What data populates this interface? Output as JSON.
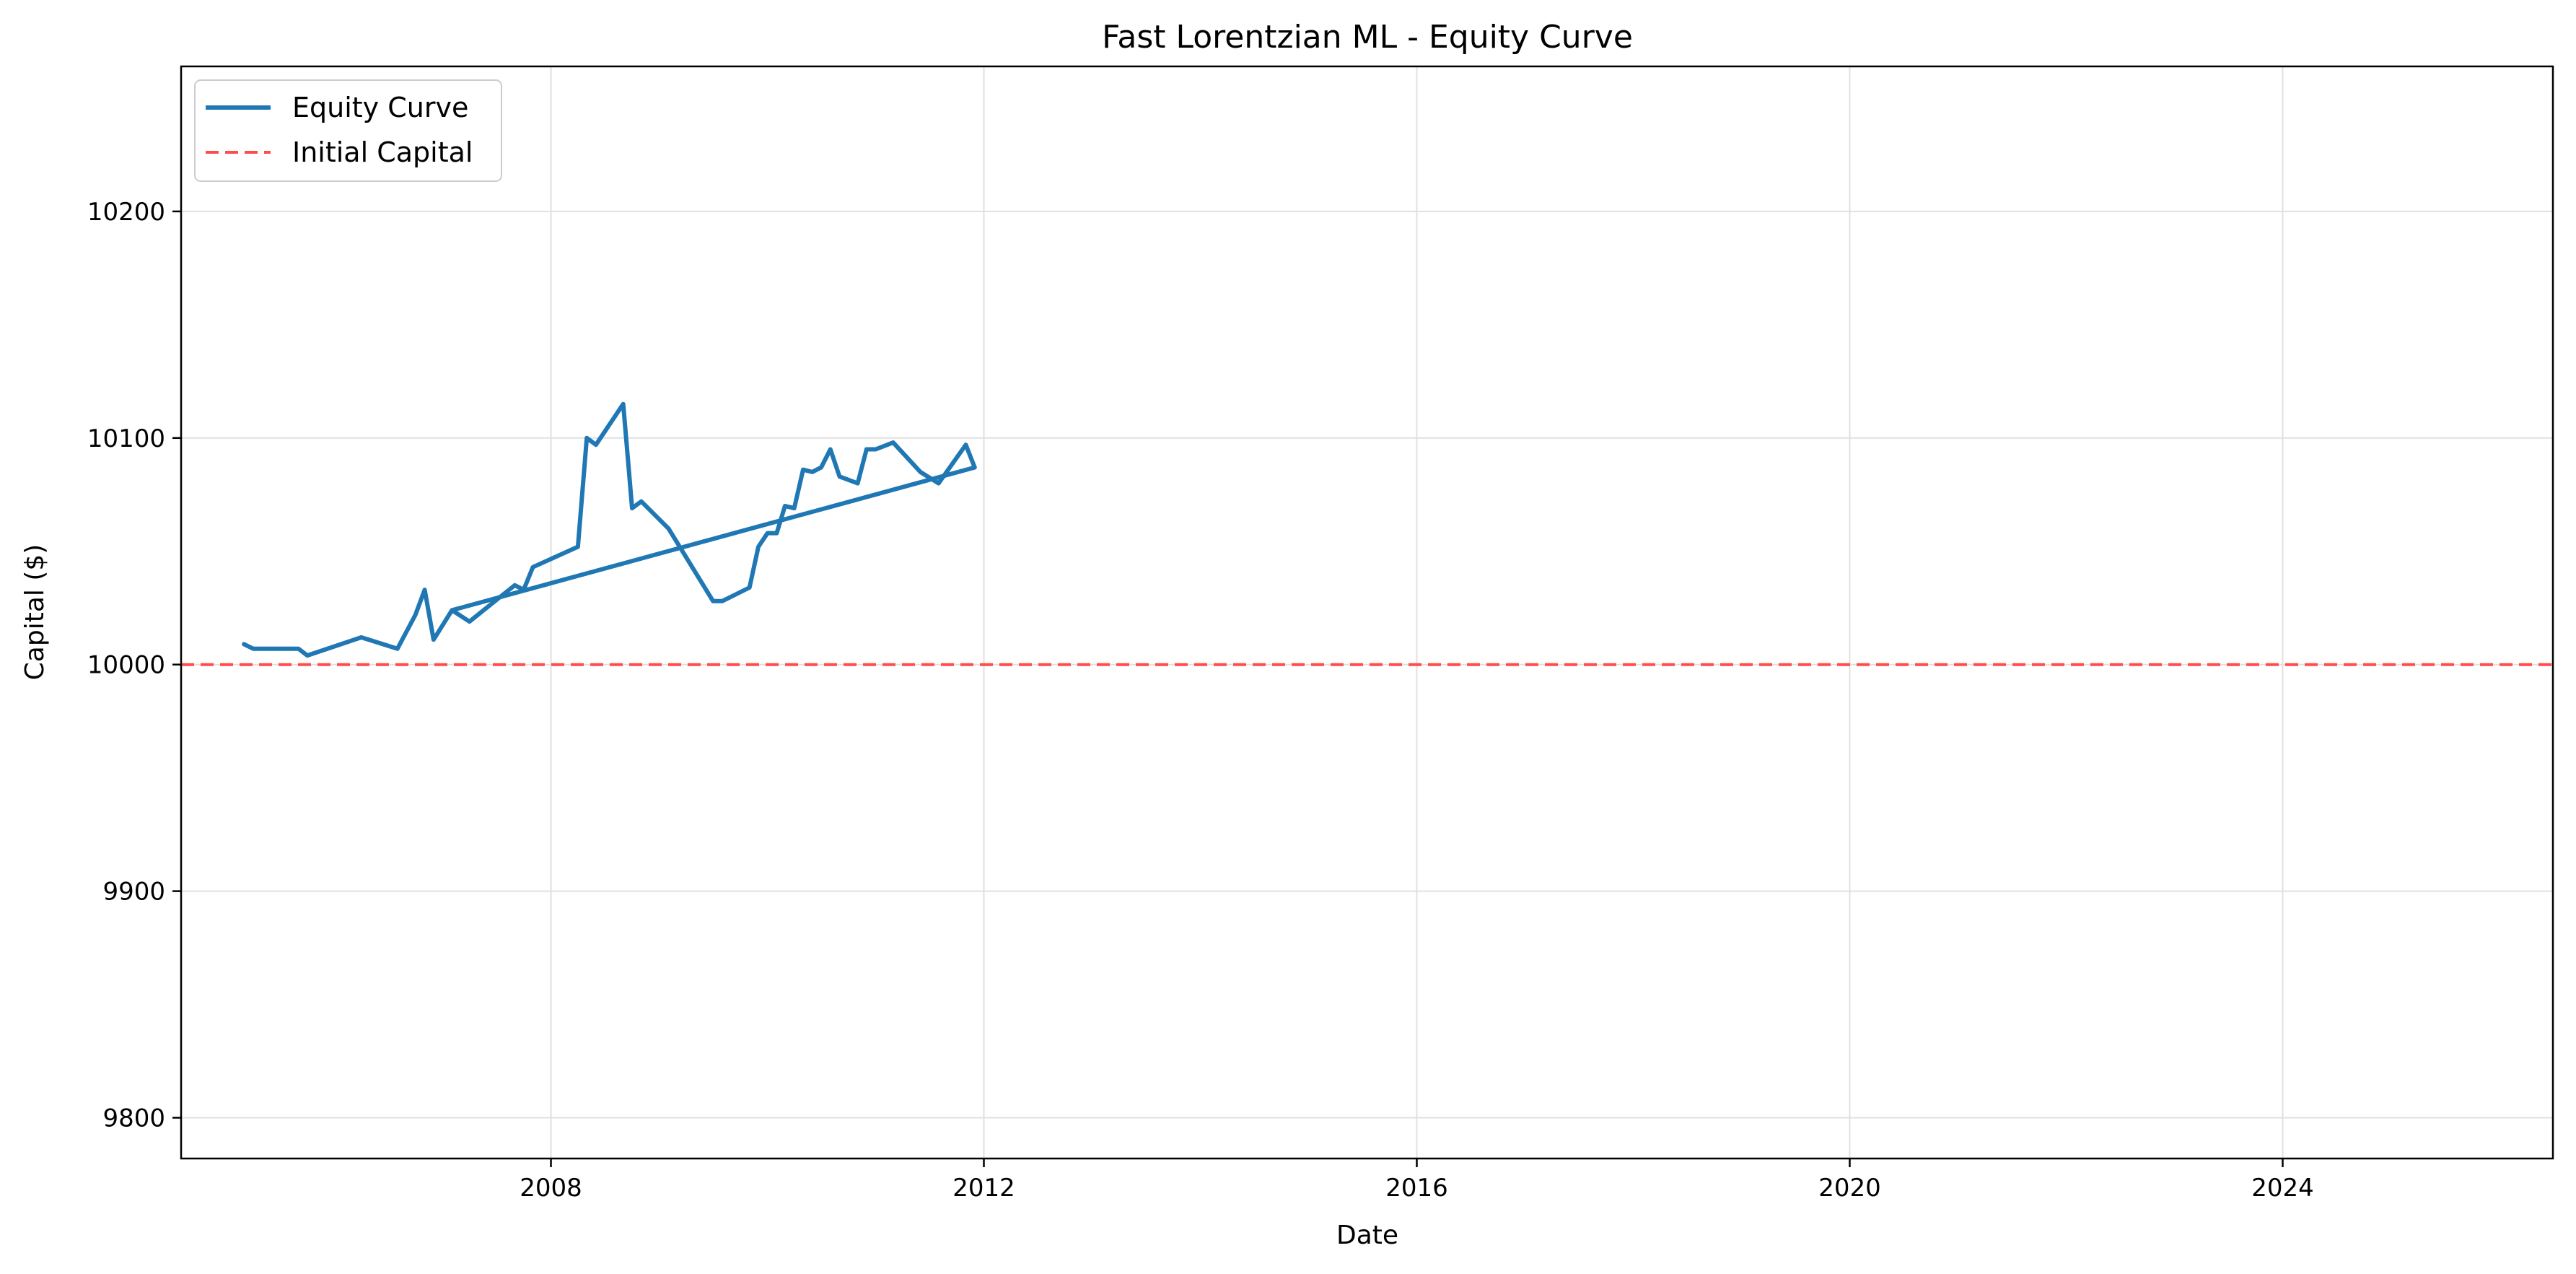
{
  "chart_data": {
    "type": "line",
    "title": "Fast Lorentzian ML - Equity Curve",
    "xlabel": "Date",
    "ylabel": "Capital ($)",
    "xlim": [
      "2004-08-01",
      "2026-07-01"
    ],
    "ylim": [
      9782,
      10264
    ],
    "xticks": [
      {
        "date": "2008-01-01",
        "label": "2008"
      },
      {
        "date": "2012-01-01",
        "label": "2012"
      },
      {
        "date": "2016-01-01",
        "label": "2016"
      },
      {
        "date": "2020-01-01",
        "label": "2020"
      },
      {
        "date": "2024-01-01",
        "label": "2024"
      }
    ],
    "yticks": [
      9800,
      9900,
      10000,
      10100,
      10200
    ],
    "grid": true,
    "legend_position": "top-left",
    "colors": {
      "equity": "#1f77b4",
      "initial": "#ff4d4d",
      "grid": "#e0e0e0"
    },
    "series": [
      {
        "name": "Equity Curve",
        "style": "solid",
        "points": [
          [
            "2005-03-01",
            10009
          ],
          [
            "2005-04-01",
            10007
          ],
          [
            "2005-09-01",
            10007
          ],
          [
            "2005-10-01",
            10004
          ],
          [
            "2006-04-01",
            10012
          ],
          [
            "2006-08-01",
            10007
          ],
          [
            "2006-10-01",
            10022
          ],
          [
            "2006-11-01",
            10033
          ],
          [
            "2006-12-01",
            10011
          ],
          [
            "2007-02-01",
            10024
          ],
          [
            "2007-04-01",
            10019
          ],
          [
            "2007-09-01",
            10035
          ],
          [
            "2007-10-01",
            10033
          ],
          [
            "2007-11-01",
            10043
          ],
          [
            "2008-04-01",
            10052
          ],
          [
            "2008-05-01",
            10100
          ],
          [
            "2008-06-01",
            10097
          ],
          [
            "2008-09-01",
            10115
          ],
          [
            "2008-10-01",
            10069
          ],
          [
            "2008-11-01",
            10072
          ],
          [
            "2009-02-01",
            10060
          ],
          [
            "2009-07-01",
            10028
          ],
          [
            "2009-08-01",
            10028
          ],
          [
            "2009-11-01",
            10034
          ],
          [
            "2009-12-01",
            10052
          ],
          [
            "2010-01-01",
            10058
          ],
          [
            "2010-02-01",
            10058
          ],
          [
            "2010-03-01",
            10070
          ],
          [
            "2010-04-01",
            10069
          ],
          [
            "2010-05-01",
            10086
          ],
          [
            "2010-06-01",
            10085
          ],
          [
            "2010-07-01",
            10087
          ],
          [
            "2010-08-01",
            10095
          ],
          [
            "2010-09-01",
            10083
          ],
          [
            "2010-11-01",
            10080
          ],
          [
            "2010-12-01",
            10095
          ],
          [
            "2011-01-01",
            10095
          ],
          [
            "2011-03-01",
            10098
          ],
          [
            "2011-06-01",
            10085
          ],
          [
            "2011-08-01",
            10080
          ],
          [
            "2011-11-01",
            10097
          ],
          [
            "2011-12-01",
            10087
          ],
          [
            "2007-02-01",
            10024
          ]
        ]
      },
      {
        "name": "Initial Capital",
        "style": "dashed",
        "points": [
          [
            "2004-08-01",
            10000
          ],
          [
            "2026-07-01",
            10000
          ]
        ]
      }
    ]
  }
}
